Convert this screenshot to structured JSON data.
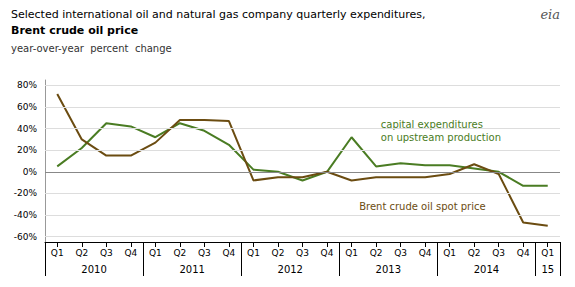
{
  "chart_data": {
    "type": "line",
    "title": "Selected international oil and natural gas company quarterly expenditures,\nBrent crude oil price",
    "subtitle": "year-over-year  percent  change",
    "logo": "eia",
    "categories": [
      "Q1",
      "Q2",
      "Q3",
      "Q4",
      "Q1",
      "Q2",
      "Q3",
      "Q4",
      "Q1",
      "Q2",
      "Q3",
      "Q4",
      "Q1",
      "Q2",
      "Q3",
      "Q4",
      "Q1",
      "Q2",
      "Q3",
      "Q4",
      "Q1"
    ],
    "category_groups": [
      "2010",
      "2011",
      "2012",
      "2013",
      "2014",
      "15"
    ],
    "series": [
      {
        "name": "capital expenditures\non upstream production",
        "color": "#4a7c23",
        "values": [
          5,
          22,
          45,
          42,
          32,
          45,
          38,
          25,
          2,
          0,
          -8,
          0,
          32,
          5,
          8,
          6,
          6,
          3,
          0,
          -13,
          -13
        ]
      },
      {
        "name": "Brent crude oil spot price",
        "color": "#6b4c11",
        "values": [
          72,
          30,
          15,
          15,
          27,
          48,
          48,
          47,
          -8,
          -5,
          -5,
          0,
          -8,
          -5,
          -5,
          -5,
          -2,
          7,
          -2,
          -47,
          -50
        ]
      }
    ],
    "ylim": [
      -65,
      85
    ],
    "yticks": [
      {
        "value": -60,
        "label": "-60%"
      },
      {
        "value": -40,
        "label": "-40%"
      },
      {
        "value": -20,
        "label": "-20%"
      },
      {
        "value": 0,
        "label": "0%"
      },
      {
        "value": 20,
        "label": "20%"
      },
      {
        "value": 40,
        "label": "40%"
      },
      {
        "value": 60,
        "label": "60%"
      },
      {
        "value": 80,
        "label": "80%"
      }
    ],
    "grid": true
  }
}
